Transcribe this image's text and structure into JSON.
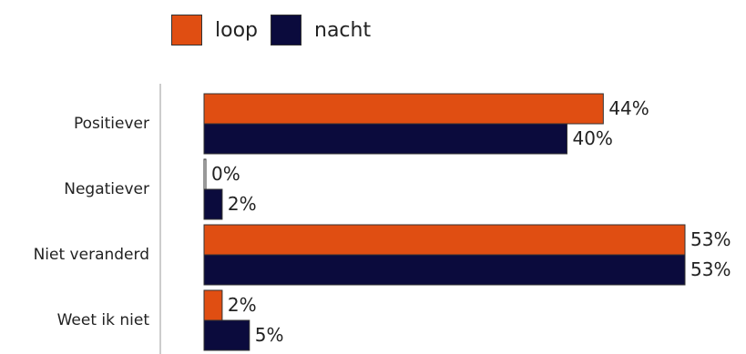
{
  "chart_data": {
    "type": "bar",
    "orientation": "horizontal",
    "categories": [
      "Positiever",
      "Negatiever",
      "Niet veranderd",
      "Weet ik niet"
    ],
    "series": [
      {
        "name": "loop",
        "color": "#e04e12",
        "values": [
          44,
          0,
          53,
          2
        ],
        "labels": [
          "44%",
          "0%",
          "53%",
          "2%"
        ]
      },
      {
        "name": "nacht",
        "color": "#0b0b3d",
        "values": [
          40,
          2,
          53,
          5
        ],
        "labels": [
          "40%",
          "2%",
          "53%",
          "5%"
        ]
      }
    ],
    "title": "",
    "xlabel": "",
    "ylabel": "",
    "xlim": [
      0,
      53
    ],
    "legend_position": "top",
    "grid": false
  }
}
